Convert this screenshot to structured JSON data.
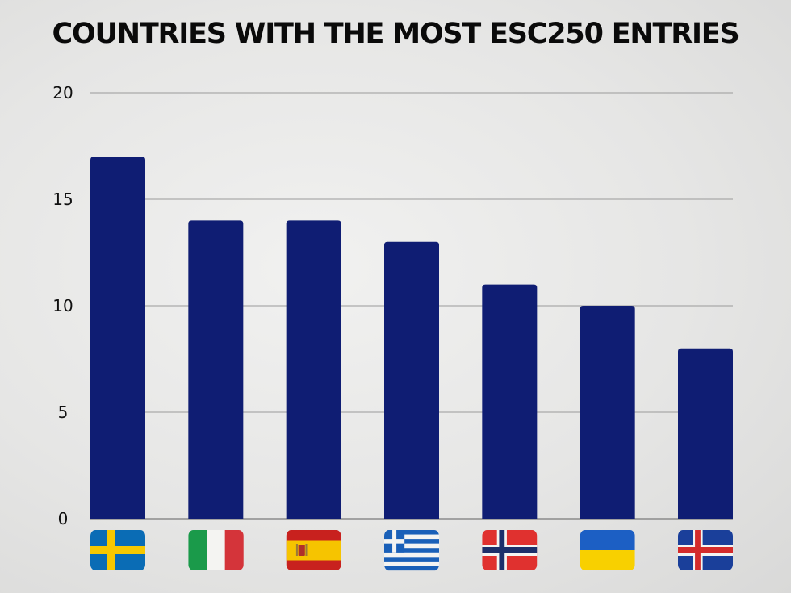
{
  "chart_data": {
    "type": "bar",
    "title": "COUNTRIES WITH THE MOST ESC250 ENTRIES",
    "xlabel": "",
    "ylabel": "",
    "ylim": [
      0,
      20
    ],
    "yticks": [
      0,
      5,
      10,
      15,
      20
    ],
    "grid": true,
    "legend": "none",
    "bar_color": "#0f1d73",
    "categories": [
      "Sweden",
      "Italy",
      "Spain",
      "Greece",
      "Norway",
      "Ukraine",
      "Iceland"
    ],
    "category_icons": [
      "sweden-flag-icon",
      "italy-flag-icon",
      "spain-flag-icon",
      "greece-flag-icon",
      "norway-flag-icon",
      "ukraine-flag-icon",
      "iceland-flag-icon"
    ],
    "values": [
      17,
      14,
      14,
      13,
      11,
      10,
      8
    ]
  }
}
